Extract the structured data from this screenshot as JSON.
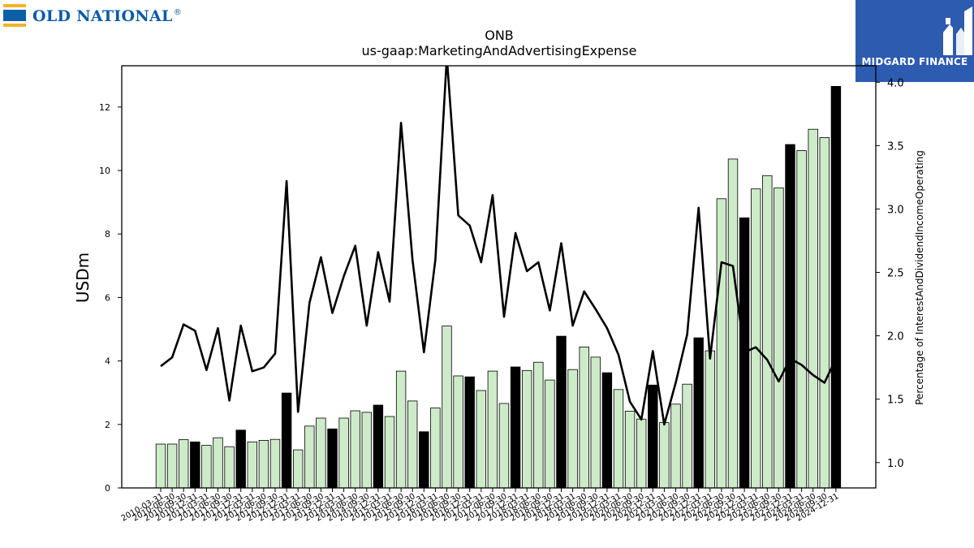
{
  "brand": {
    "left_logo_text": "OLD NATIONAL",
    "left_logo_mark": "®",
    "right_logo_text": "MIDGARD FINANCE",
    "right_logo_icon": "midgard-m-icon",
    "right_logo_color": "#2d5bb0"
  },
  "chart_data": {
    "type": "bar",
    "title": "ONB",
    "subtitle": "us-gaap:MarketingAndAdvertisingExpense",
    "ylabel": "USDm",
    "y2label": "Percentage of InterestAndDividendIncomeOperating",
    "ylim": [
      0,
      13.3
    ],
    "y2lim": [
      0.8,
      4.13
    ],
    "yticks": [
      "0",
      "2",
      "4",
      "6",
      "8",
      "10",
      "12"
    ],
    "y2ticks": [
      "1.0",
      "1.5",
      "2.0",
      "2.5",
      "3.0",
      "3.5",
      "4.0"
    ],
    "colors": {
      "quarter_bar": "#cdebc8",
      "annual_bar": "#000000",
      "line": "#000000"
    },
    "categories": [
      "2010-03-31",
      "2010-06-30",
      "2010-09-30",
      "2010-12-31",
      "2011-03-31",
      "2011-06-30",
      "2011-09-30",
      "2011-12-31",
      "2012-03-31",
      "2012-06-30",
      "2012-09-30",
      "2012-12-31",
      "2013-03-31",
      "2013-06-30",
      "2013-09-30",
      "2013-12-31",
      "2014-03-31",
      "2014-06-30",
      "2014-09-30",
      "2014-12-31",
      "2015-03-31",
      "2015-06-30",
      "2015-09-30",
      "2015-12-31",
      "2016-03-31",
      "2016-06-30",
      "2016-09-30",
      "2016-12-31",
      "2017-03-31",
      "2017-06-30",
      "2017-09-30",
      "2017-12-31",
      "2018-03-31",
      "2018-06-30",
      "2018-09-30",
      "2018-12-31",
      "2019-03-31",
      "2019-06-30",
      "2019-09-30",
      "2019-12-31",
      "2020-03-31",
      "2020-06-30",
      "2020-09-30",
      "2020-12-31",
      "2021-03-31",
      "2021-06-30",
      "2021-09-30",
      "2021-12-31",
      "2022-03-31",
      "2022-06-30",
      "2022-09-30",
      "2022-12-31",
      "2023-03-31",
      "2023-06-30",
      "2023-09-30",
      "2023-12-31",
      "2024-03-31",
      "2024-06-30",
      "2024-09-30",
      "2024-12-31"
    ],
    "series": [
      {
        "name": "",
        "type": "bar",
        "values": [
          1.38,
          1.38,
          1.52,
          1.45,
          1.34,
          1.58,
          1.3,
          1.82,
          1.45,
          1.5,
          1.53,
          2.99,
          1.2,
          1.95,
          2.2,
          1.86,
          2.2,
          2.43,
          2.38,
          2.61,
          2.25,
          3.68,
          2.74,
          1.77,
          2.52,
          5.1,
          3.53,
          3.5,
          3.07,
          3.68,
          2.66,
          3.81,
          3.7,
          3.96,
          3.4,
          4.78,
          3.73,
          4.44,
          4.12,
          3.63,
          3.1,
          2.42,
          2.17,
          3.24,
          2.06,
          2.64,
          3.27,
          4.73,
          4.32,
          9.11,
          10.36,
          8.51,
          9.42,
          9.84,
          9.45,
          10.82,
          10.63,
          11.3,
          11.04,
          12.65
        ],
        "annual": [
          false,
          false,
          false,
          true,
          false,
          false,
          false,
          true,
          false,
          false,
          false,
          true,
          false,
          false,
          false,
          true,
          false,
          false,
          false,
          true,
          false,
          false,
          false,
          true,
          false,
          false,
          false,
          true,
          false,
          false,
          false,
          true,
          false,
          false,
          false,
          true,
          false,
          false,
          false,
          true,
          false,
          false,
          false,
          true,
          false,
          false,
          false,
          true,
          false,
          false,
          false,
          true,
          false,
          false,
          false,
          true,
          false,
          false,
          false,
          true
        ]
      },
      {
        "name": "",
        "type": "line",
        "axis": "right",
        "values": [
          1.76,
          1.83,
          2.09,
          2.04,
          1.73,
          2.06,
          1.49,
          2.08,
          1.72,
          1.75,
          1.86,
          3.22,
          1.4,
          2.26,
          2.62,
          2.18,
          2.47,
          2.71,
          2.08,
          2.66,
          2.27,
          3.68,
          2.6,
          1.87,
          2.6,
          4.2,
          2.95,
          2.87,
          2.58,
          3.11,
          2.15,
          2.81,
          2.51,
          2.58,
          2.2,
          2.73,
          2.08,
          2.35,
          2.21,
          2.06,
          1.85,
          1.48,
          1.34,
          1.88,
          1.3,
          1.63,
          2.01,
          3.01,
          1.82,
          2.58,
          2.55,
          1.87,
          1.91,
          1.81,
          1.64,
          1.82,
          1.77,
          1.69,
          1.63,
          1.82
        ]
      }
    ]
  }
}
